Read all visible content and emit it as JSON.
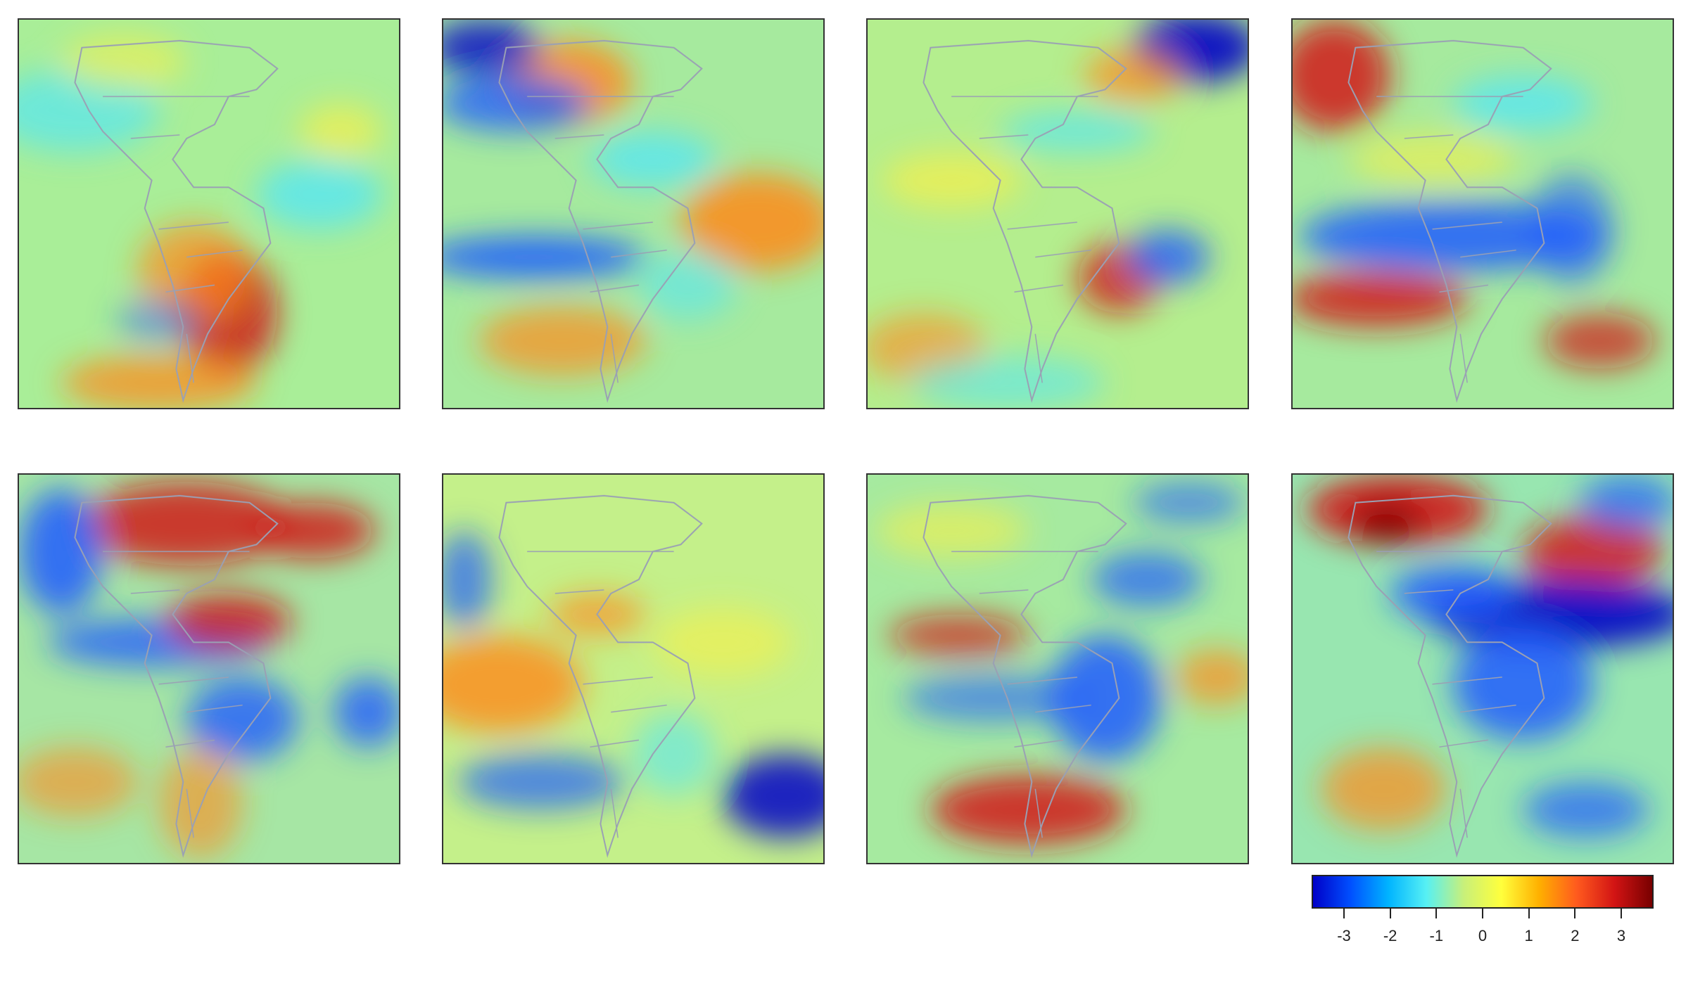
{
  "figure": {
    "rows": 2,
    "columns": 4,
    "panel_count": 8,
    "region": "Americas and surrounding oceans",
    "map_content": "gridded anomaly field with country borders",
    "colormap": [
      "#0000c8",
      "#0050ff",
      "#00b4ff",
      "#56f0f4",
      "#c8f07a",
      "#ffff3c",
      "#ffb000",
      "#ff5a1e",
      "#d21414",
      "#780000"
    ]
  },
  "panels": [
    {
      "id": "panel-1",
      "row": 1,
      "col": 1,
      "pattern": "mixed, warm southern South America"
    },
    {
      "id": "panel-2",
      "row": 1,
      "col": 2,
      "pattern": "cold bands Pacific, warm North America"
    },
    {
      "id": "panel-3",
      "row": 1,
      "col": 3,
      "pattern": "mostly neutral, cold northeast corner"
    },
    {
      "id": "panel-4",
      "row": 1,
      "col": 4,
      "pattern": "warm northwest Pacific, cold equatorial band"
    },
    {
      "id": "panel-5",
      "row": 2,
      "col": 1,
      "pattern": "warm North America, cold Brazil"
    },
    {
      "id": "panel-6",
      "row": 2,
      "col": 2,
      "pattern": "mostly neutral, warm eastern Pacific"
    },
    {
      "id": "panel-7",
      "row": 2,
      "col": 3,
      "pattern": "cold South America, warm southeast Pacific"
    },
    {
      "id": "panel-8",
      "row": 2,
      "col": 4,
      "pattern": "strong warm western US, strong cold Caribbean"
    }
  ],
  "colorbar": {
    "min": -3.7,
    "max": 3.7,
    "ticks": [
      "-3",
      "-2",
      "-1",
      "0",
      "1",
      "2",
      "3"
    ],
    "tick_values": [
      -3,
      -2,
      -1,
      0,
      1,
      2,
      3
    ]
  }
}
